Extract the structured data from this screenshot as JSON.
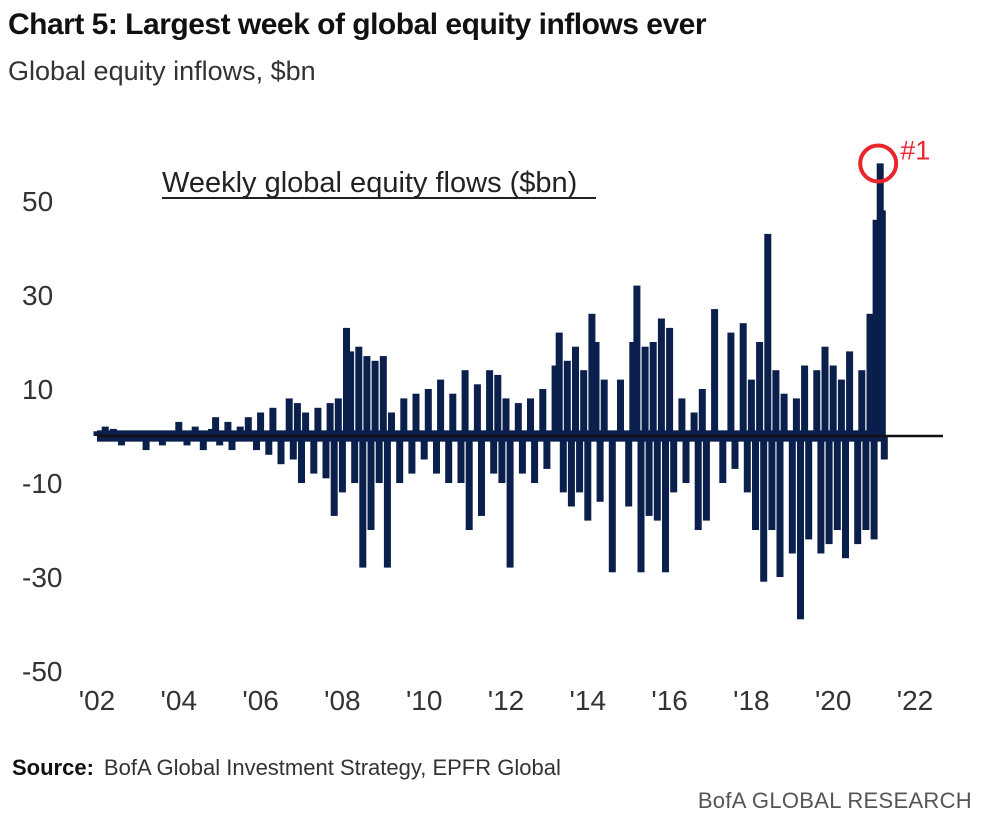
{
  "header": {
    "title": "Chart 5: Largest week of global equity inflows ever",
    "subtitle": "Global equity inflows, $bn"
  },
  "footer": {
    "source_label": "Source:",
    "source_text": "BofA Global Investment Strategy, EPFR Global",
    "brand": "BofA GLOBAL RESEARCH"
  },
  "colors": {
    "bars": "#0b1f4d",
    "zero_line": "#111111",
    "highlight": "#e8262b"
  },
  "chart_data": {
    "type": "bar",
    "title": "Weekly global equity flows ($bn)",
    "xlabel": "",
    "ylabel": "",
    "xlim": [
      2002,
      2023
    ],
    "ylim": [
      -50,
      60
    ],
    "yticks": [
      50,
      30,
      10,
      -10,
      -30,
      -50
    ],
    "xticks": [
      "'02",
      "'04",
      "'06",
      "'08",
      "'10",
      "'12",
      "'14",
      "'16",
      "'18",
      "'20",
      "'22"
    ],
    "grid": false,
    "legend": "none",
    "annotation": {
      "text": "#1",
      "x": 2021.1,
      "y": 58.4
    },
    "series": [
      {
        "values": [
          [
            2002.0,
            1
          ],
          [
            2002.2,
            2
          ],
          [
            2002.4,
            1.5
          ],
          [
            2002.6,
            -2
          ],
          [
            2002.8,
            1
          ],
          [
            2003.0,
            -1
          ],
          [
            2003.2,
            -3
          ],
          [
            2003.4,
            1
          ],
          [
            2003.6,
            -2
          ],
          [
            2003.8,
            0.5
          ],
          [
            2004.0,
            3
          ],
          [
            2004.2,
            -2
          ],
          [
            2004.4,
            2
          ],
          [
            2004.6,
            -3
          ],
          [
            2004.8,
            1.5
          ],
          [
            2004.9,
            4
          ],
          [
            2005.0,
            -2
          ],
          [
            2005.2,
            3
          ],
          [
            2005.3,
            -3
          ],
          [
            2005.5,
            2
          ],
          [
            2005.7,
            4
          ],
          [
            2005.9,
            -3
          ],
          [
            2006.0,
            5
          ],
          [
            2006.2,
            -4
          ],
          [
            2006.3,
            6
          ],
          [
            2006.5,
            -6
          ],
          [
            2006.7,
            8
          ],
          [
            2006.8,
            -5
          ],
          [
            2006.9,
            7
          ],
          [
            2007.0,
            -10
          ],
          [
            2007.1,
            5
          ],
          [
            2007.3,
            -8
          ],
          [
            2007.4,
            6
          ],
          [
            2007.6,
            -9
          ],
          [
            2007.7,
            7
          ],
          [
            2007.8,
            -17
          ],
          [
            2007.9,
            8
          ],
          [
            2008.0,
            -12
          ],
          [
            2008.1,
            23
          ],
          [
            2008.2,
            18
          ],
          [
            2008.3,
            -10
          ],
          [
            2008.4,
            19
          ],
          [
            2008.5,
            -28
          ],
          [
            2008.6,
            17
          ],
          [
            2008.7,
            -20
          ],
          [
            2008.8,
            16
          ],
          [
            2008.9,
            -10
          ],
          [
            2009.0,
            17
          ],
          [
            2009.1,
            -28
          ],
          [
            2009.2,
            5
          ],
          [
            2009.4,
            -10
          ],
          [
            2009.5,
            8
          ],
          [
            2009.7,
            -8
          ],
          [
            2009.8,
            9
          ],
          [
            2010.0,
            -5
          ],
          [
            2010.1,
            10
          ],
          [
            2010.3,
            -8
          ],
          [
            2010.4,
            12
          ],
          [
            2010.6,
            -10
          ],
          [
            2010.7,
            9
          ],
          [
            2010.9,
            -10
          ],
          [
            2011.0,
            14
          ],
          [
            2011.1,
            -20
          ],
          [
            2011.3,
            11
          ],
          [
            2011.4,
            -17
          ],
          [
            2011.6,
            14
          ],
          [
            2011.7,
            -8
          ],
          [
            2011.8,
            13
          ],
          [
            2011.9,
            -10
          ],
          [
            2012.0,
            8
          ],
          [
            2012.1,
            -28
          ],
          [
            2012.3,
            7
          ],
          [
            2012.4,
            -8
          ],
          [
            2012.6,
            8
          ],
          [
            2012.7,
            -10
          ],
          [
            2012.9,
            10
          ],
          [
            2013.0,
            -7
          ],
          [
            2013.2,
            15
          ],
          [
            2013.3,
            22
          ],
          [
            2013.4,
            -12
          ],
          [
            2013.5,
            16
          ],
          [
            2013.6,
            -15
          ],
          [
            2013.7,
            19
          ],
          [
            2013.8,
            -12
          ],
          [
            2013.9,
            14
          ],
          [
            2014.0,
            -18
          ],
          [
            2014.1,
            26
          ],
          [
            2014.2,
            20
          ],
          [
            2014.3,
            -14
          ],
          [
            2014.4,
            12
          ],
          [
            2014.6,
            -29
          ],
          [
            2014.8,
            12
          ],
          [
            2015.0,
            -15
          ],
          [
            2015.1,
            20
          ],
          [
            2015.2,
            32
          ],
          [
            2015.3,
            -29
          ],
          [
            2015.4,
            19
          ],
          [
            2015.5,
            -17
          ],
          [
            2015.6,
            20
          ],
          [
            2015.7,
            -18
          ],
          [
            2015.8,
            25
          ],
          [
            2015.9,
            -29
          ],
          [
            2016.0,
            23
          ],
          [
            2016.1,
            -12
          ],
          [
            2016.3,
            8
          ],
          [
            2016.4,
            -10
          ],
          [
            2016.6,
            5
          ],
          [
            2016.7,
            -20
          ],
          [
            2016.8,
            10
          ],
          [
            2016.9,
            -18
          ],
          [
            2017.1,
            27
          ],
          [
            2017.3,
            -10
          ],
          [
            2017.5,
            22
          ],
          [
            2017.6,
            -7
          ],
          [
            2017.8,
            24
          ],
          [
            2017.9,
            -12
          ],
          [
            2018.0,
            12
          ],
          [
            2018.1,
            -20
          ],
          [
            2018.2,
            20
          ],
          [
            2018.3,
            -31
          ],
          [
            2018.4,
            43
          ],
          [
            2018.5,
            -20
          ],
          [
            2018.6,
            14
          ],
          [
            2018.7,
            -30
          ],
          [
            2018.8,
            9
          ],
          [
            2019.0,
            -25
          ],
          [
            2019.1,
            8
          ],
          [
            2019.2,
            -39
          ],
          [
            2019.3,
            15
          ],
          [
            2019.4,
            -22
          ],
          [
            2019.6,
            14
          ],
          [
            2019.7,
            -25
          ],
          [
            2019.8,
            19
          ],
          [
            2019.9,
            -23
          ],
          [
            2020.0,
            15
          ],
          [
            2020.1,
            -20
          ],
          [
            2020.2,
            12
          ],
          [
            2020.3,
            -26
          ],
          [
            2020.4,
            18
          ],
          [
            2020.6,
            -23
          ],
          [
            2020.7,
            14
          ],
          [
            2020.8,
            -20
          ],
          [
            2020.9,
            26
          ],
          [
            2021.0,
            -22
          ],
          [
            2021.05,
            46
          ],
          [
            2021.1,
            44
          ],
          [
            2021.15,
            58
          ],
          [
            2021.2,
            48
          ],
          [
            2021.25,
            -5
          ]
        ]
      }
    ]
  }
}
